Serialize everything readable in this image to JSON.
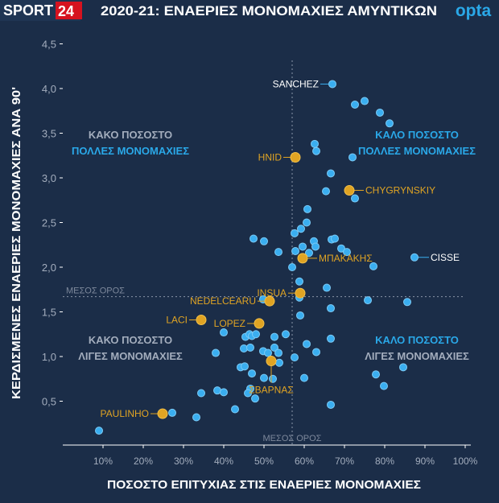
{
  "header": {
    "logo_left_a": "SPORT",
    "logo_left_b": "24",
    "title": "2020-21: ΕΝΑΕΡΙΕΣ ΜΟΝΟΜΑΧΙΕΣ ΑΜΥΝΤΙΚΩΝ",
    "logo_right": "opta"
  },
  "colors": {
    "background": "#1b2d48",
    "point": "#3aaef0",
    "highlight": "#e0a423",
    "accent_blue": "#2aa8e8",
    "muted": "#a3adbd",
    "brand_red": "#d6121f"
  },
  "chart_data": {
    "type": "scatter",
    "title": "2020-21: ΕΝΑΕΡΙΕΣ ΜΟΝΟΜΑΧΙΕΣ ΑΜΥΝΤΙΚΩΝ",
    "xlabel": "ΠΟΣΟΣΤΟ ΕΠΙΤΥΧΙΑΣ ΣΤΙΣ ΕΝΑΕΡΙΕΣ ΜΟΝΟΜΑΧΙΕΣ",
    "ylabel": "ΚΕΡΔΙΣΜΕΝΕΣ ΕΝΑΕΡΙΕΣ ΜΟΝΟΜΑΧΙΕΣ ΑΝΑ 90'",
    "xlim": [
      0,
      100
    ],
    "ylim": [
      0,
      4.5
    ],
    "x_ticks": [
      "10%",
      "20%",
      "30%",
      "40%",
      "50%",
      "60%",
      "70%",
      "80%",
      "90%",
      "100%"
    ],
    "y_ticks": [
      "0,5",
      "1,0",
      "1,5",
      "2,0",
      "2,5",
      "3,0",
      "3,5",
      "4,0",
      "4,5"
    ],
    "grid": false,
    "mean_x": 57,
    "mean_y": 1.67,
    "mean_label": "ΜΕΣΟΣ ΟΡΟΣ",
    "quadrants": {
      "top_left": [
        "ΚΑΚΟ ΠΟΣΟΣΤΟ",
        "ΠΟΛΛΕΣ ΜΟΝΟΜΑΧΙΕΣ"
      ],
      "top_right": [
        "ΚΑΛΟ ΠΟΣΟΣΤΟ",
        "ΠΟΛΛΕΣ ΜΟΝΟΜΑΧΙΕΣ"
      ],
      "bottom_left": [
        "ΚΑΚΟ ΠΟΣΟΣΤΟ",
        "ΛΙΓΕΣ ΜΟΝΟΜΑΧΙΕΣ"
      ],
      "bottom_right": [
        "ΚΑΛΟ ΠΟΣΟΣΤΟ",
        "ΛΙΓΕΣ ΜΟΝΟΜΑΧΙΕΣ"
      ]
    },
    "points": [
      [
        72.6,
        3.82
      ],
      [
        75,
        3.86
      ],
      [
        78.8,
        3.73
      ],
      [
        81.2,
        3.61
      ],
      [
        62.6,
        3.38
      ],
      [
        63,
        3.3
      ],
      [
        72,
        3.23
      ],
      [
        66.6,
        3.05
      ],
      [
        65.4,
        2.85
      ],
      [
        72.6,
        2.77
      ],
      [
        60.8,
        2.65
      ],
      [
        60.6,
        2.5
      ],
      [
        59.2,
        2.43
      ],
      [
        57.6,
        2.38
      ],
      [
        47.4,
        2.32
      ],
      [
        50,
        2.29
      ],
      [
        59.6,
        2.23
      ],
      [
        62.4,
        2.29
      ],
      [
        62.8,
        2.23
      ],
      [
        57.8,
        2.18
      ],
      [
        53.6,
        2.17
      ],
      [
        61.2,
        2.16
      ],
      [
        66.8,
        2.31
      ],
      [
        67.6,
        2.32
      ],
      [
        69.2,
        2.21
      ],
      [
        70.6,
        2.17
      ],
      [
        77.2,
        2.01
      ],
      [
        57,
        2.0
      ],
      [
        58.8,
        1.84
      ],
      [
        65.6,
        1.77
      ],
      [
        58.8,
        1.66
      ],
      [
        75.8,
        1.63
      ],
      [
        85.6,
        1.61
      ],
      [
        66.6,
        1.54
      ],
      [
        59,
        1.46
      ],
      [
        49.8,
        1.64
      ],
      [
        40,
        1.27
      ],
      [
        45.4,
        1.22
      ],
      [
        46.4,
        1.25
      ],
      [
        47,
        1.23
      ],
      [
        48,
        1.25
      ],
      [
        52.6,
        1.22
      ],
      [
        55.4,
        1.25
      ],
      [
        38,
        1.04
      ],
      [
        45,
        1.09
      ],
      [
        46.6,
        1.1
      ],
      [
        49.8,
        1.06
      ],
      [
        51,
        1.04
      ],
      [
        52.6,
        1.1
      ],
      [
        53.6,
        1.04
      ],
      [
        57.6,
        0.99
      ],
      [
        60.6,
        1.14
      ],
      [
        63,
        1.05
      ],
      [
        66.6,
        1.2
      ],
      [
        53.8,
        0.93
      ],
      [
        44.2,
        0.88
      ],
      [
        45.2,
        0.89
      ],
      [
        47,
        0.81
      ],
      [
        50,
        0.76
      ],
      [
        52.2,
        0.75
      ],
      [
        60,
        0.76
      ],
      [
        77.8,
        0.8
      ],
      [
        84.6,
        0.88
      ],
      [
        79.8,
        0.67
      ],
      [
        66.6,
        0.46
      ],
      [
        34.4,
        0.59
      ],
      [
        38.4,
        0.62
      ],
      [
        40,
        0.6
      ],
      [
        46.6,
        0.64
      ],
      [
        46,
        0.59
      ],
      [
        47.8,
        0.53
      ],
      [
        42.8,
        0.41
      ],
      [
        27.2,
        0.37
      ],
      [
        33.2,
        0.32
      ],
      [
        9,
        0.17
      ]
    ],
    "labeled_points": [
      {
        "name": "SANCHEZ",
        "x": 67,
        "y": 4.05,
        "highlight": false
      },
      {
        "name": "CISSE",
        "x": 87.4,
        "y": 2.11,
        "highlight": false
      },
      {
        "name": "HNID",
        "x": 57.8,
        "y": 3.23,
        "highlight": true
      },
      {
        "name": "CHYGRYNSKIY",
        "x": 71.2,
        "y": 2.86,
        "highlight": true
      },
      {
        "name": "ΜΠΑΚΑΚΗΣ",
        "x": 59.6,
        "y": 2.1,
        "highlight": true
      },
      {
        "name": "INSUA",
        "x": 59,
        "y": 1.71,
        "highlight": true
      },
      {
        "name": "NEDELCEARU",
        "x": 51.4,
        "y": 1.62,
        "highlight": true
      },
      {
        "name": "LACI",
        "x": 34.4,
        "y": 1.41,
        "highlight": true
      },
      {
        "name": "LOPEZ",
        "x": 48.8,
        "y": 1.37,
        "highlight": true
      },
      {
        "name": "ΣΒΑΡΝΑΣ",
        "x": 51.8,
        "y": 0.95,
        "highlight": true
      },
      {
        "name": "PAULINHO",
        "x": 24.8,
        "y": 0.36,
        "highlight": true
      }
    ]
  }
}
